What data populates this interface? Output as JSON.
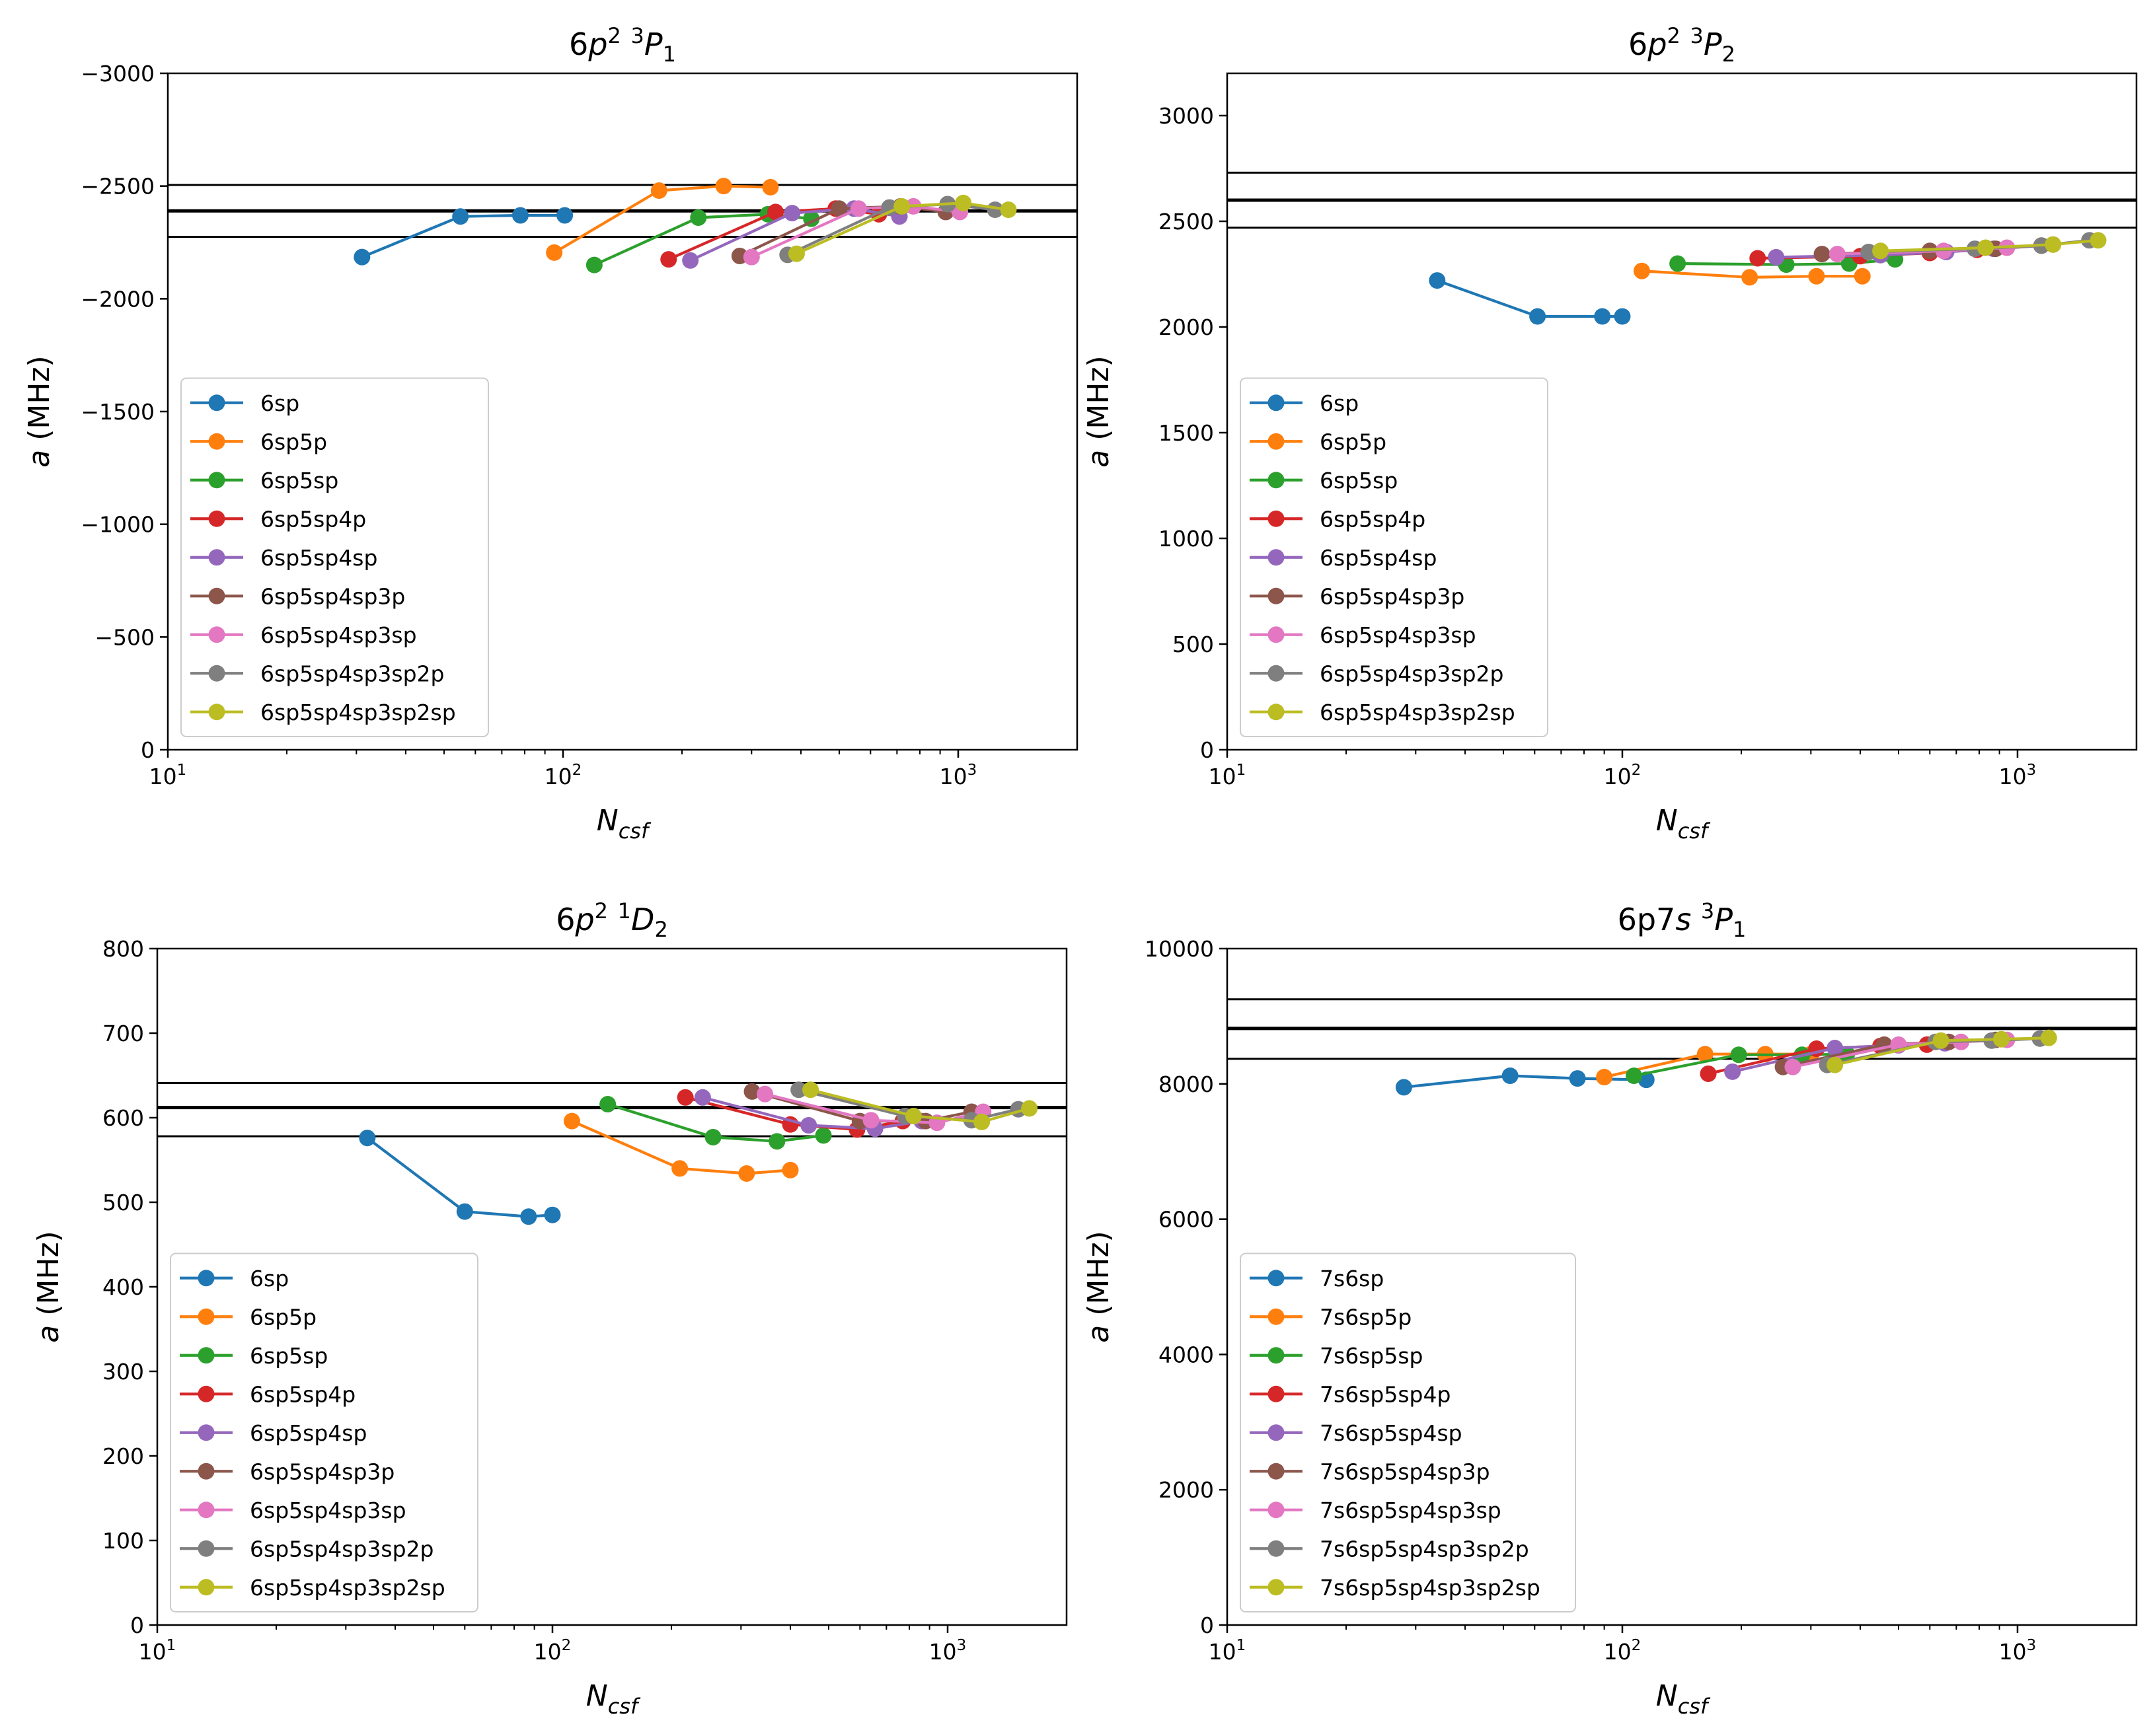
{
  "colors": {
    "C0": "#1f77b4",
    "C1": "#ff7f0e",
    "C2": "#2ca02c",
    "C3": "#d62728",
    "C4": "#9467bd",
    "C5": "#8c564b",
    "C6": "#e377c2",
    "C7": "#7f7f7f",
    "C8": "#bcbd22"
  },
  "xlabel_main": "N",
  "xlabel_sub": "csf",
  "chart_data": [
    {
      "type": "line",
      "title": {
        "base": "6p",
        "sup1": "2",
        "space": "  ",
        "pre": "3",
        "term": "P",
        "sub": "1"
      },
      "xlabel": "N_csf",
      "ylabel": "a (MHz)",
      "xscale": "log",
      "xlim": [
        10,
        2000
      ],
      "ylim": [
        0,
        -3000
      ],
      "inverted_y": true,
      "xticks": [
        {
          "v": 10,
          "exp": "1"
        },
        {
          "v": 100,
          "exp": "2"
        },
        {
          "v": 1000,
          "exp": "3"
        }
      ],
      "yticks": [
        {
          "v": 0,
          "label": "0"
        },
        {
          "v": -500,
          "label": "−500"
        },
        {
          "v": -1000,
          "label": "−1000"
        },
        {
          "v": -1500,
          "label": "−1500"
        },
        {
          "v": -2000,
          "label": "−2000"
        },
        {
          "v": -2500,
          "label": "−2500"
        },
        {
          "v": -3000,
          "label": "−3000"
        }
      ],
      "hlines": [
        {
          "y": -2390,
          "thick": true
        },
        {
          "y": -2505,
          "thick": false
        },
        {
          "y": -2275,
          "thick": false
        }
      ],
      "legend_position": "lower-left",
      "series": [
        {
          "name": "6sp",
          "color": "C0",
          "points": [
            [
              31,
              -2185
            ],
            [
              55,
              -2365
            ],
            [
              78,
              -2370
            ],
            [
              101,
              -2370
            ]
          ]
        },
        {
          "name": "6sp5p",
          "color": "C1",
          "points": [
            [
              95,
              -2205
            ],
            [
              175,
              -2480
            ],
            [
              255,
              -2500
            ],
            [
              335,
              -2495
            ]
          ]
        },
        {
          "name": "6sp5sp",
          "color": "C2",
          "points": [
            [
              120,
              -2150
            ],
            [
              220,
              -2360
            ],
            [
              330,
              -2375
            ],
            [
              425,
              -2355
            ]
          ]
        },
        {
          "name": "6sp5sp4p",
          "color": "C3",
          "points": [
            [
              185,
              -2175
            ],
            [
              345,
              -2385
            ],
            [
              490,
              -2400
            ],
            [
              630,
              -2375
            ]
          ]
        },
        {
          "name": "6sp5sp4sp",
          "color": "C4",
          "points": [
            [
              210,
              -2170
            ],
            [
              380,
              -2380
            ],
            [
              545,
              -2400
            ],
            [
              710,
              -2365
            ]
          ]
        },
        {
          "name": "6sp5sp4sp3p",
          "color": "C5",
          "points": [
            [
              280,
              -2190
            ],
            [
              500,
              -2400
            ],
            [
              715,
              -2410
            ],
            [
              930,
              -2385
            ]
          ]
        },
        {
          "name": "6sp5sp4sp3sp",
          "color": "C6",
          "points": [
            [
              300,
              -2185
            ],
            [
              560,
              -2400
            ],
            [
              770,
              -2410
            ],
            [
              1010,
              -2385
            ]
          ]
        },
        {
          "name": "6sp5sp4sp3sp2p",
          "color": "C7",
          "points": [
            [
              370,
              -2195
            ],
            [
              670,
              -2405
            ],
            [
              940,
              -2420
            ],
            [
              1240,
              -2395
            ]
          ]
        },
        {
          "name": "6sp5sp4sp3sp2sp",
          "color": "C8",
          "points": [
            [
              390,
              -2200
            ],
            [
              720,
              -2410
            ],
            [
              1030,
              -2425
            ],
            [
              1340,
              -2395
            ]
          ]
        }
      ]
    },
    {
      "type": "line",
      "title": {
        "base": "6p",
        "sup1": "2",
        "space": "  ",
        "pre": "3",
        "term": "P",
        "sub": "2"
      },
      "xlabel": "N_csf",
      "ylabel": "a (MHz)",
      "xscale": "log",
      "xlim": [
        10,
        2000
      ],
      "ylim": [
        0,
        3200
      ],
      "inverted_y": false,
      "xticks": [
        {
          "v": 10,
          "exp": "1"
        },
        {
          "v": 100,
          "exp": "2"
        },
        {
          "v": 1000,
          "exp": "3"
        }
      ],
      "yticks": [
        {
          "v": 0,
          "label": "0"
        },
        {
          "v": 500,
          "label": "500"
        },
        {
          "v": 1000,
          "label": "1000"
        },
        {
          "v": 1500,
          "label": "1500"
        },
        {
          "v": 2000,
          "label": "2000"
        },
        {
          "v": 2500,
          "label": "2500"
        },
        {
          "v": 3000,
          "label": "3000"
        }
      ],
      "hlines": [
        {
          "y": 2600,
          "thick": true
        },
        {
          "y": 2730,
          "thick": false
        },
        {
          "y": 2470,
          "thick": false
        }
      ],
      "legend_position": "lower-left",
      "series": [
        {
          "name": "6sp",
          "color": "C0",
          "points": [
            [
              34,
              2220
            ],
            [
              61,
              2050
            ],
            [
              89,
              2050
            ],
            [
              100,
              2050
            ]
          ]
        },
        {
          "name": "6sp5p",
          "color": "C1",
          "points": [
            [
              112,
              2265
            ],
            [
              210,
              2235
            ],
            [
              310,
              2240
            ],
            [
              405,
              2240
            ]
          ]
        },
        {
          "name": "6sp5sp",
          "color": "C2",
          "points": [
            [
              138,
              2300
            ],
            [
              260,
              2295
            ],
            [
              375,
              2300
            ],
            [
              490,
              2320
            ]
          ]
        },
        {
          "name": "6sp5sp4p",
          "color": "C3",
          "points": [
            [
              220,
              2325
            ],
            [
              400,
              2335
            ],
            [
              600,
              2350
            ],
            [
              790,
              2365
            ]
          ]
        },
        {
          "name": "6sp5sp4sp",
          "color": "C4",
          "points": [
            [
              245,
              2330
            ],
            [
              450,
              2340
            ],
            [
              660,
              2355
            ],
            [
              870,
              2370
            ]
          ]
        },
        {
          "name": "6sp5sp4sp3p",
          "color": "C5",
          "points": [
            [
              320,
              2345
            ],
            [
              600,
              2360
            ],
            [
              880,
              2370
            ],
            [
              1150,
              2385
            ]
          ]
        },
        {
          "name": "6sp5sp4sp3sp",
          "color": "C6",
          "points": [
            [
              350,
              2345
            ],
            [
              650,
              2360
            ],
            [
              940,
              2375
            ],
            [
              1230,
              2390
            ]
          ]
        },
        {
          "name": "6sp5sp4sp3sp2p",
          "color": "C7",
          "points": [
            [
              420,
              2355
            ],
            [
              780,
              2370
            ],
            [
              1150,
              2385
            ],
            [
              1520,
              2410
            ]
          ]
        },
        {
          "name": "6sp5sp4sp3sp2sp",
          "color": "C8",
          "points": [
            [
              450,
              2360
            ],
            [
              830,
              2375
            ],
            [
              1230,
              2390
            ],
            [
              1600,
              2410
            ]
          ]
        }
      ]
    },
    {
      "type": "line",
      "title": {
        "base": "6p",
        "sup1": "2",
        "space": "  ",
        "pre": "1",
        "term": "D",
        "sub": "2"
      },
      "xlabel": "N_csf",
      "ylabel": "a (MHz)",
      "xscale": "log",
      "xlim": [
        10,
        2000
      ],
      "ylim": [
        0,
        800
      ],
      "inverted_y": false,
      "xticks": [
        {
          "v": 10,
          "exp": "1"
        },
        {
          "v": 100,
          "exp": "2"
        },
        {
          "v": 1000,
          "exp": "3"
        }
      ],
      "yticks": [
        {
          "v": 0,
          "label": "0"
        },
        {
          "v": 100,
          "label": "100"
        },
        {
          "v": 200,
          "label": "200"
        },
        {
          "v": 300,
          "label": "300"
        },
        {
          "v": 400,
          "label": "400"
        },
        {
          "v": 500,
          "label": "500"
        },
        {
          "v": 600,
          "label": "600"
        },
        {
          "v": 700,
          "label": "700"
        },
        {
          "v": 800,
          "label": "800"
        }
      ],
      "hlines": [
        {
          "y": 612,
          "thick": true
        },
        {
          "y": 641,
          "thick": false
        },
        {
          "y": 578,
          "thick": false
        }
      ],
      "legend_position": "lower-left",
      "series": [
        {
          "name": "6sp",
          "color": "C0",
          "points": [
            [
              34,
              576
            ],
            [
              60,
              489
            ],
            [
              87,
              483
            ],
            [
              100,
              485
            ]
          ]
        },
        {
          "name": "6sp5p",
          "color": "C1",
          "points": [
            [
              112,
              596
            ],
            [
              210,
              540
            ],
            [
              310,
              534
            ],
            [
              400,
              538
            ]
          ]
        },
        {
          "name": "6sp5sp",
          "color": "C2",
          "points": [
            [
              138,
              616
            ],
            [
              255,
              577
            ],
            [
              370,
              572
            ],
            [
              485,
              579
            ]
          ]
        },
        {
          "name": "6sp5sp4p",
          "color": "C3",
          "points": [
            [
              217,
              624
            ],
            [
              400,
              592
            ],
            [
              590,
              586
            ],
            [
              770,
              596
            ]
          ]
        },
        {
          "name": "6sp5sp4sp",
          "color": "C4",
          "points": [
            [
              240,
              624
            ],
            [
              445,
              591
            ],
            [
              655,
              587
            ],
            [
              860,
              596
            ]
          ]
        },
        {
          "name": "6sp5sp4sp3p",
          "color": "C5",
          "points": [
            [
              320,
              631
            ],
            [
              600,
              596
            ],
            [
              880,
              596
            ],
            [
              1150,
              607
            ]
          ]
        },
        {
          "name": "6sp5sp4sp3sp",
          "color": "C6",
          "points": [
            [
              345,
              628
            ],
            [
              640,
              597
            ],
            [
              940,
              594
            ],
            [
              1230,
              607
            ]
          ]
        },
        {
          "name": "6sp5sp4sp3sp2p",
          "color": "C7",
          "points": [
            [
              420,
              633
            ],
            [
              780,
              602
            ],
            [
              1150,
              597
            ],
            [
              1510,
              610
            ]
          ]
        },
        {
          "name": "6sp5sp4sp3sp2sp",
          "color": "C8",
          "points": [
            [
              450,
              633
            ],
            [
              820,
              602
            ],
            [
              1220,
              595
            ],
            [
              1610,
              611
            ]
          ]
        }
      ]
    },
    {
      "type": "line",
      "title": {
        "base": "6p7",
        "ital": "s",
        "space": " ",
        "pre": "3",
        "term": "P",
        "sub": "1"
      },
      "xlabel": "N_csf",
      "ylabel": "a (MHz)",
      "xscale": "log",
      "xlim": [
        10,
        2000
      ],
      "ylim": [
        0,
        10000
      ],
      "inverted_y": false,
      "xticks": [
        {
          "v": 10,
          "exp": "1"
        },
        {
          "v": 100,
          "exp": "2"
        },
        {
          "v": 1000,
          "exp": "3"
        }
      ],
      "yticks": [
        {
          "v": 0,
          "label": "0"
        },
        {
          "v": 2000,
          "label": "2000"
        },
        {
          "v": 4000,
          "label": "4000"
        },
        {
          "v": 6000,
          "label": "6000"
        },
        {
          "v": 8000,
          "label": "8000"
        },
        {
          "v": 10000,
          "label": "10000"
        }
      ],
      "hlines": [
        {
          "y": 8820,
          "thick": true
        },
        {
          "y": 9250,
          "thick": false
        },
        {
          "y": 8370,
          "thick": false
        }
      ],
      "legend_position": "lower-left",
      "series": [
        {
          "name": "7s6sp",
          "color": "C0",
          "points": [
            [
              28,
              7950
            ],
            [
              52,
              8120
            ],
            [
              77,
              8080
            ],
            [
              115,
              8060
            ]
          ]
        },
        {
          "name": "7s6sp5p",
          "color": "C1",
          "points": [
            [
              90,
              8100
            ],
            [
              162,
              8440
            ],
            [
              230,
              8440
            ],
            [
              300,
              8440
            ]
          ]
        },
        {
          "name": "7s6sp5sp",
          "color": "C2",
          "points": [
            [
              107,
              8120
            ],
            [
              197,
              8430
            ],
            [
              285,
              8430
            ],
            [
              370,
              8440
            ]
          ]
        },
        {
          "name": "7s6sp5sp4p",
          "color": "C3",
          "points": [
            [
              165,
              8150
            ],
            [
              310,
              8520
            ],
            [
              450,
              8560
            ],
            [
              590,
              8580
            ]
          ]
        },
        {
          "name": "7s6sp5sp4sp",
          "color": "C4",
          "points": [
            [
              190,
              8180
            ],
            [
              345,
              8530
            ],
            [
              500,
              8570
            ],
            [
              655,
              8600
            ]
          ]
        },
        {
          "name": "7s6sp5sp4sp3p",
          "color": "C5",
          "points": [
            [
              255,
              8250
            ],
            [
              460,
              8580
            ],
            [
              670,
              8620
            ],
            [
              880,
              8650
            ]
          ]
        },
        {
          "name": "7s6sp5sp4sp3sp",
          "color": "C6",
          "points": [
            [
              270,
              8250
            ],
            [
              500,
              8580
            ],
            [
              720,
              8620
            ],
            [
              940,
              8650
            ]
          ]
        },
        {
          "name": "7s6sp5sp4sp3sp2p",
          "color": "C7",
          "points": [
            [
              330,
              8280
            ],
            [
              620,
              8620
            ],
            [
              860,
              8640
            ],
            [
              1140,
              8670
            ]
          ]
        },
        {
          "name": "7s6sp5sp4sp3sp2sp",
          "color": "C8",
          "points": [
            [
              345,
              8280
            ],
            [
              640,
              8640
            ],
            [
              910,
              8660
            ],
            [
              1200,
              8680
            ]
          ]
        }
      ]
    }
  ]
}
